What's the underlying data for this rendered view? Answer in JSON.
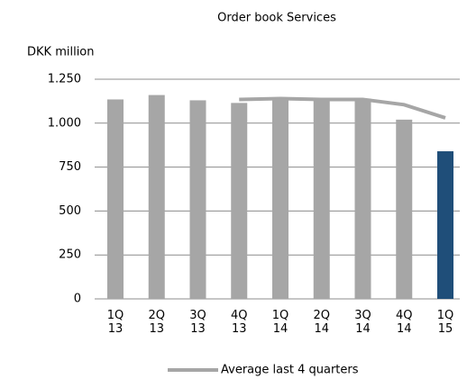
{
  "chart_data": {
    "type": "bar-line",
    "title": "Order book Services",
    "y_label": "DKK million",
    "categories": [
      "1Q 13",
      "2Q 13",
      "3Q 13",
      "4Q 13",
      "1Q 14",
      "2Q 14",
      "3Q 14",
      "4Q 14",
      "1Q 15"
    ],
    "bar_values": [
      1135,
      1160,
      1130,
      1115,
      1140,
      1130,
      1140,
      1020,
      840
    ],
    "bar_colors": [
      "#a6a6a6",
      "#a6a6a6",
      "#a6a6a6",
      "#a6a6a6",
      "#a6a6a6",
      "#a6a6a6",
      "#a6a6a6",
      "#a6a6a6",
      "#1f4e79"
    ],
    "series": [
      {
        "name": "Average last 4 quarters",
        "color": "#a6a6a6",
        "values": [
          null,
          null,
          null,
          1135,
          1140,
          1135,
          1135,
          1105,
          1030
        ]
      }
    ],
    "ylim": [
      0,
      1250
    ],
    "yticks": [
      0,
      250,
      500,
      750,
      {
        "value": 1000,
        "label": "1.000"
      },
      {
        "value": 1250,
        "label": "1.250"
      }
    ],
    "grid": true
  }
}
